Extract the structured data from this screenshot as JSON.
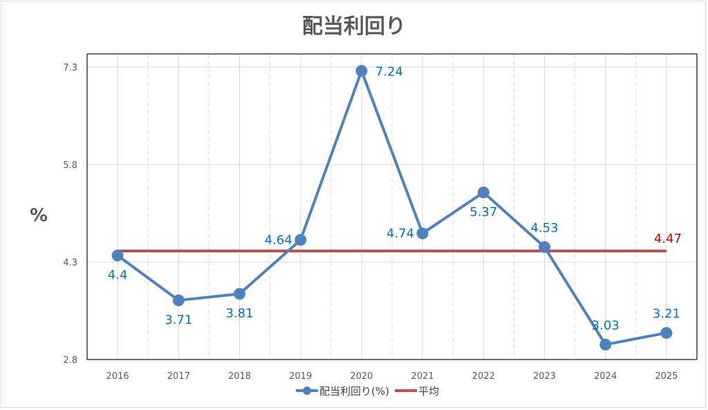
{
  "chart_data": {
    "type": "line",
    "title": "配当利回り",
    "xlabel": "",
    "ylabel": "%",
    "categories": [
      "2016",
      "2017",
      "2018",
      "2019",
      "2020",
      "2021",
      "2022",
      "2023",
      "2024",
      "2025"
    ],
    "series": [
      {
        "name": "配当利回り(%)",
        "color": "#4F81BD",
        "label_color": "#0070C0",
        "values": [
          4.4,
          3.71,
          3.81,
          4.64,
          7.24,
          4.74,
          5.37,
          4.53,
          3.03,
          3.21
        ],
        "labels": [
          "4.4",
          "3.71",
          "3.81",
          "4.64",
          "7.24",
          "4.74",
          "5.37",
          "4.53",
          "3.03",
          "3.21"
        ],
        "label_positions": [
          "below",
          "below",
          "below",
          "left",
          "right",
          "left",
          "below",
          "above",
          "above",
          "above"
        ]
      },
      {
        "name": "平均",
        "color": "#C0504D",
        "label_color": "#C00000",
        "values": [
          4.47,
          4.47,
          4.47,
          4.47,
          4.47,
          4.47,
          4.47,
          4.47,
          4.47,
          4.47
        ],
        "end_label": "4.47"
      }
    ],
    "yticks": [
      "2.8",
      "4.3",
      "5.8",
      "7.3"
    ],
    "ytick_values": [
      2.8,
      4.3,
      5.8,
      7.3
    ],
    "ylim": [
      2.8,
      7.5
    ],
    "grid": true,
    "legend": "bottom"
  }
}
